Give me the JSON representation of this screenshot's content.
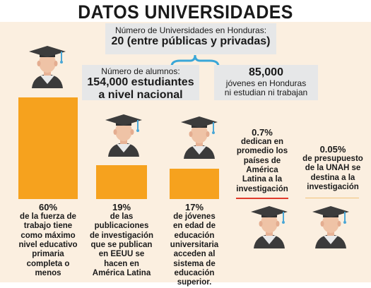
{
  "title": "DATOS UNIVERSIDADES",
  "box_universities": {
    "label": "Número de Universidades en Honduras:",
    "value": "20 (entre públicas y privadas)"
  },
  "box_students": {
    "label": "Número de alumnos:",
    "value_line1": "154,000 estudiantes",
    "value_line2": "a nivel nacional"
  },
  "box_youth": {
    "value": "85,000",
    "line1": "jóvenes en Honduras",
    "line2": "ni estudian ni trabajan"
  },
  "stats": [
    {
      "pct": "60%",
      "lines": [
        "de la fuerza de",
        "trabajo tiene",
        "como máximo",
        "nivel educativo",
        "primaria",
        "completa o",
        "menos"
      ],
      "value": 60
    },
    {
      "pct": "19%",
      "lines": [
        "de las",
        "publicaciones",
        "de investigación",
        "que se publican",
        "en EEUU se",
        "hacen en",
        "América Latina"
      ],
      "value": 19
    },
    {
      "pct": "17%",
      "lines": [
        "de jóvenes",
        "en edad de",
        "educación",
        "universitaria",
        "acceden al",
        "sistema de",
        "educación",
        "superior."
      ],
      "value": 17
    },
    {
      "pct": "0.7%",
      "lines": [
        "dedican en",
        "promedio los",
        "países de",
        "América",
        "Latina a la",
        "investigación"
      ],
      "value": 0.7
    },
    {
      "pct": "0.05%",
      "lines": [
        "de presupuesto",
        "de la UNAH se",
        "destina a la",
        "investigación"
      ],
      "value": 0.05
    }
  ],
  "colors": {
    "bar": "#f6a21e",
    "background_panel": "#fbefe0",
    "box": "#e6e7e8",
    "accent_line": "#e03a2a"
  },
  "icons": [
    "graduate-avatar-icon"
  ]
}
